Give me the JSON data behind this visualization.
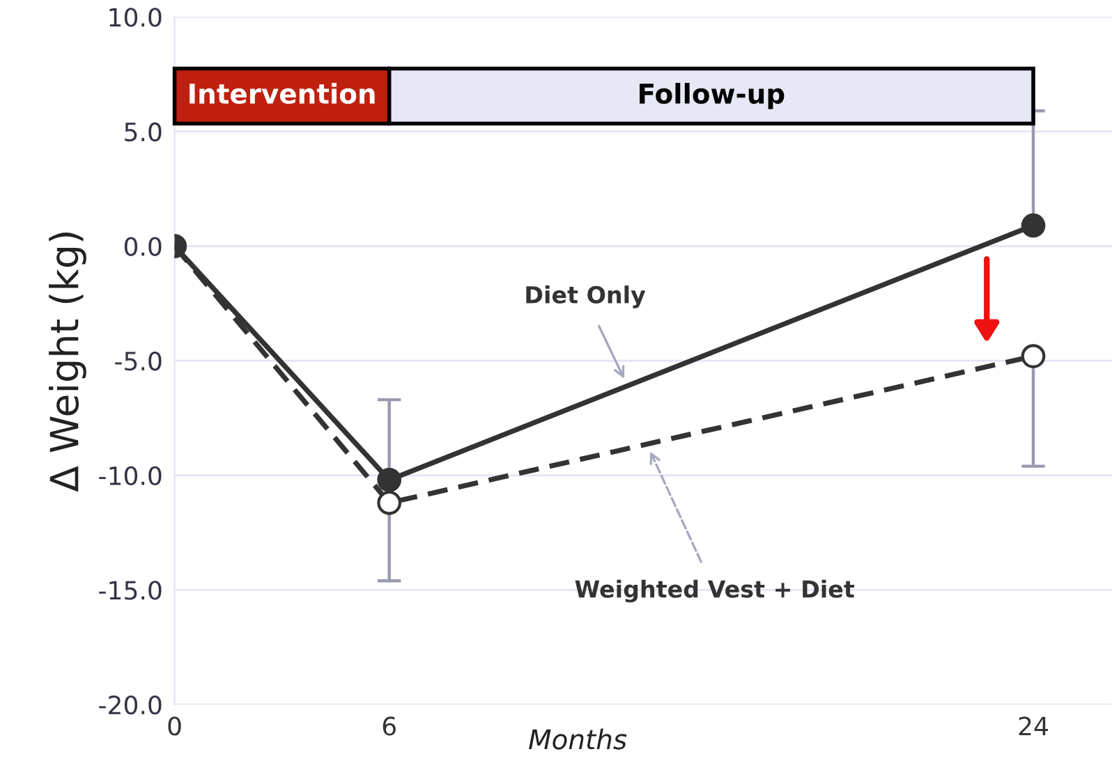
{
  "chart_data": {
    "type": "line",
    "xlabel": "Months",
    "ylabel": "Δ Weight (kg)",
    "x": [
      0,
      6,
      24
    ],
    "xlim": [
      0,
      26.2
    ],
    "xticks": [
      0,
      6,
      24
    ],
    "ylim": [
      -20,
      10
    ],
    "yticks": [
      {
        "value": 10,
        "label": "10.0"
      },
      {
        "value": 5,
        "label": "5.0"
      },
      {
        "value": 0,
        "label": "0.0"
      },
      {
        "value": -5,
        "label": "-5.0"
      },
      {
        "value": -10,
        "label": "-10.0"
      },
      {
        "value": -15,
        "label": "-15.0"
      },
      {
        "value": -20,
        "label": "-20.0"
      }
    ],
    "grid": "y",
    "marker": "circle",
    "legend": false,
    "series": [
      {
        "name": "Diet Only",
        "color": "#333333",
        "line_style": "solid",
        "values": [
          0,
          -10.2,
          0.9
        ],
        "errors": [
          null,
          [
            -10.2,
            -6.7
          ],
          [
            0.9,
            5.9
          ]
        ]
      },
      {
        "name": "Weighted Vest + Diet",
        "color": "#333333",
        "line_style": "dashed",
        "values": [
          0,
          -11.2,
          -4.8
        ],
        "errors": [
          null,
          [
            -14.6,
            -11.2
          ],
          [
            -9.6,
            -4.8
          ]
        ]
      }
    ],
    "bands": [
      {
        "axis": "x",
        "from": 0,
        "to": 6,
        "label": "Intervention",
        "color": "#c0200f"
      },
      {
        "axis": "x",
        "from": 6,
        "to": 24,
        "label": "Follow-up",
        "color": "#e6e8f6"
      }
    ]
  }
}
